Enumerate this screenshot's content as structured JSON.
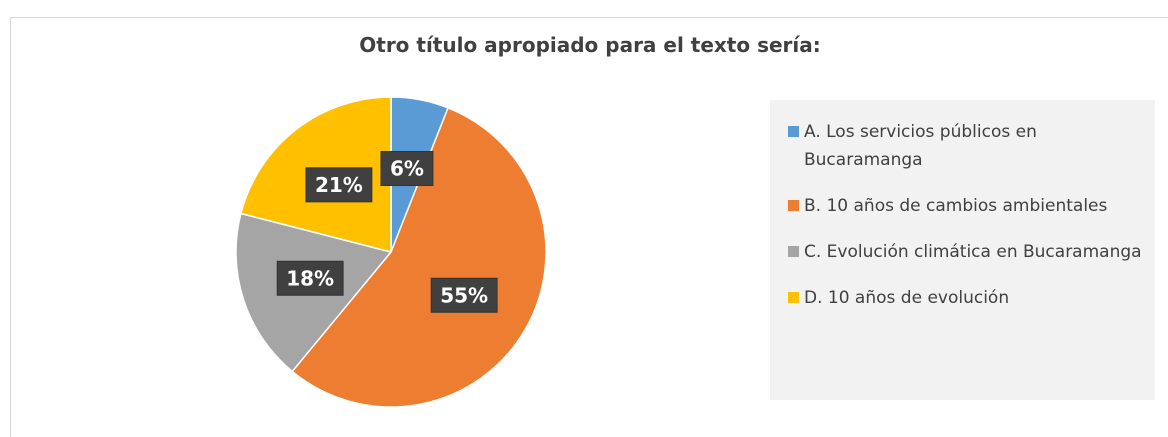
{
  "chart_data": {
    "type": "pie",
    "title": "Otro título apropiado para el texto sería:",
    "categories": [
      "A. Los servicios públicos en Bucaramanga",
      "B. 10 años de cambios ambientales",
      "C.  Evolución climática en Bucaramanga",
      "D. 10 años de evolución"
    ],
    "values": [
      6,
      55,
      18,
      21
    ],
    "value_labels": [
      "6%",
      "55%",
      "18%",
      "21%"
    ],
    "colors": [
      "#5b9bd5",
      "#ed7d31",
      "#a5a5a5",
      "#ffc000"
    ],
    "legend": "right"
  }
}
